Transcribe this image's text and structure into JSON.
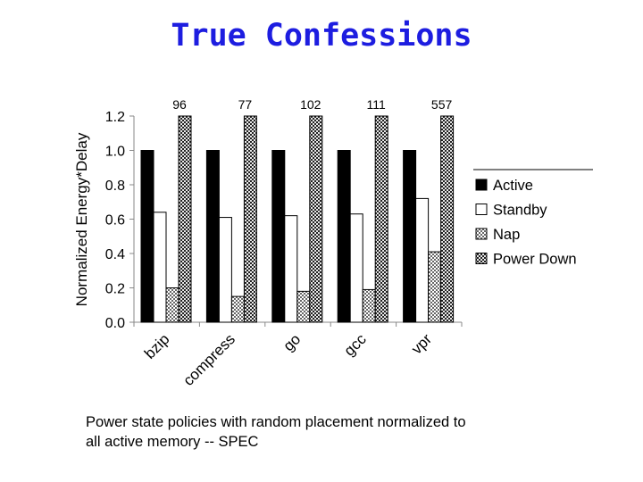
{
  "title": "True Confessions",
  "caption": {
    "line1": "Power state policies with random placement normalized to",
    "line2": "all active memory -- SPEC"
  },
  "colors": {
    "title": "#1d1de0",
    "active": "#000000",
    "standby": "#ffffff",
    "nap": "#8a8a8a",
    "power_down": "#555555"
  },
  "chart_data": {
    "type": "bar",
    "categories": [
      "bzip",
      "compress",
      "go",
      "gcc",
      "vpr"
    ],
    "ylabel": "Normalized Energy*Delay",
    "ylim": [
      0.0,
      1.2
    ],
    "yticks": [
      "0.0",
      "0.2",
      "0.4",
      "0.6",
      "0.8",
      "1.0",
      "1.2"
    ],
    "grid": false,
    "legend_position": "right",
    "series": [
      {
        "name": "Active",
        "values": [
          1.0,
          1.0,
          1.0,
          1.0,
          1.0
        ],
        "fill": "solid-black"
      },
      {
        "name": "Standby",
        "values": [
          0.64,
          0.61,
          0.62,
          0.63,
          0.72
        ],
        "fill": "white"
      },
      {
        "name": "Nap",
        "values": [
          0.2,
          0.15,
          0.18,
          0.19,
          0.41
        ],
        "fill": "gray-checker"
      },
      {
        "name": "Power Down",
        "values": [
          96,
          77,
          102,
          111,
          557
        ],
        "fill": "dark-checker",
        "clipped": true
      }
    ],
    "annotations": [
      "96",
      "77",
      "102",
      "111",
      "557"
    ]
  }
}
